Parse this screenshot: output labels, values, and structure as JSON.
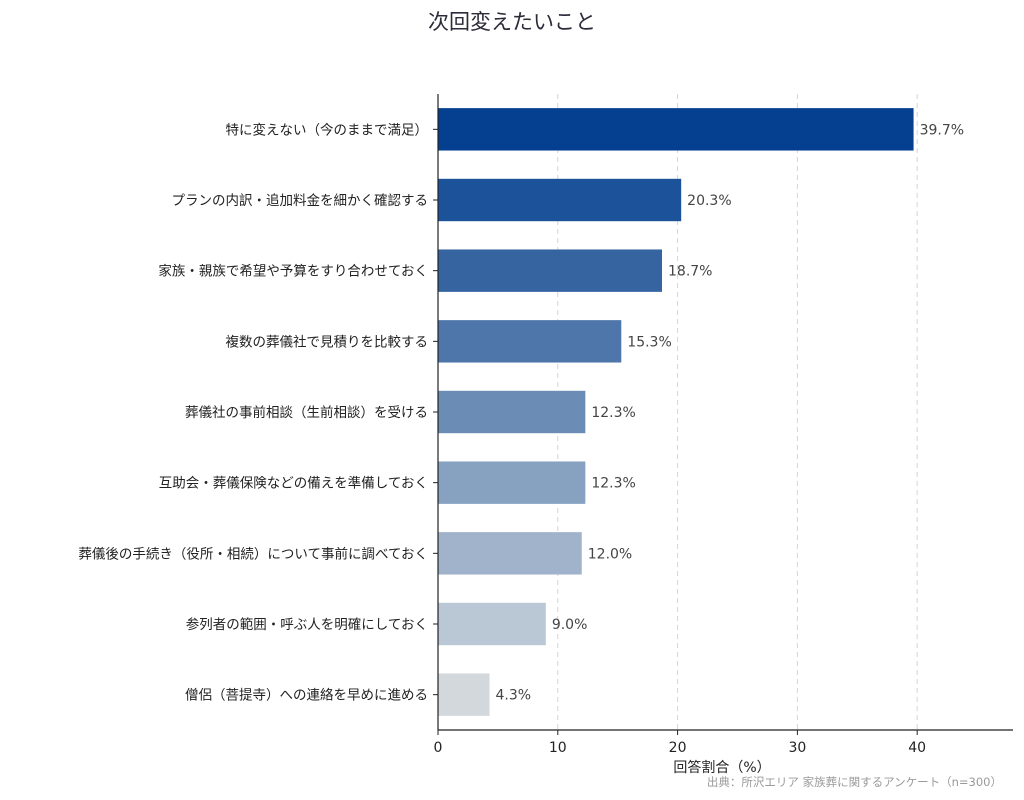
{
  "chart_data": {
    "type": "bar",
    "orientation": "horizontal",
    "title": "次回変えたいこと",
    "xlabel": "回答割合（%）",
    "ylabel": "",
    "xlim": [
      0,
      48
    ],
    "xticks": [
      0,
      10,
      20,
      30,
      40
    ],
    "xtick_labels": [
      "0",
      "10",
      "20",
      "30",
      "40"
    ],
    "grid": "vertical dashed",
    "value_suffix": "%",
    "source": "出典：所沢エリア 家族葬に関するアンケート（n=300）",
    "categories": [
      "特に変えない（今のままで満足）",
      "プランの内訳・追加料金を細かく確認する",
      "家族・親族で希望や予算をすり合わせておく",
      "複数の葬儀社で見積りを比較する",
      "葬儀社の事前相談（生前相談）を受ける",
      "互助会・葬儀保険などの備えを準備しておく",
      "葬儀後の手続き（役所・相続）について事前に調べておく",
      "参列者の範囲・呼ぶ人を明確にしておく",
      "僧侶（菩提寺）への連絡を早めに進める"
    ],
    "values": [
      39.7,
      20.3,
      18.7,
      15.3,
      12.3,
      12.3,
      12.0,
      9.0,
      4.3
    ],
    "value_labels": [
      "39.7%",
      "20.3%",
      "18.7%",
      "15.3%",
      "12.3%",
      "12.3%",
      "12.0%",
      "9.0%",
      "4.3%"
    ],
    "colors": [
      "#053f8f",
      "#1c5299",
      "#3564a0",
      "#4e76aa",
      "#6b8cb5",
      "#87a1c1",
      "#a0b3cb",
      "#bac7d5",
      "#d3d8dd"
    ]
  }
}
